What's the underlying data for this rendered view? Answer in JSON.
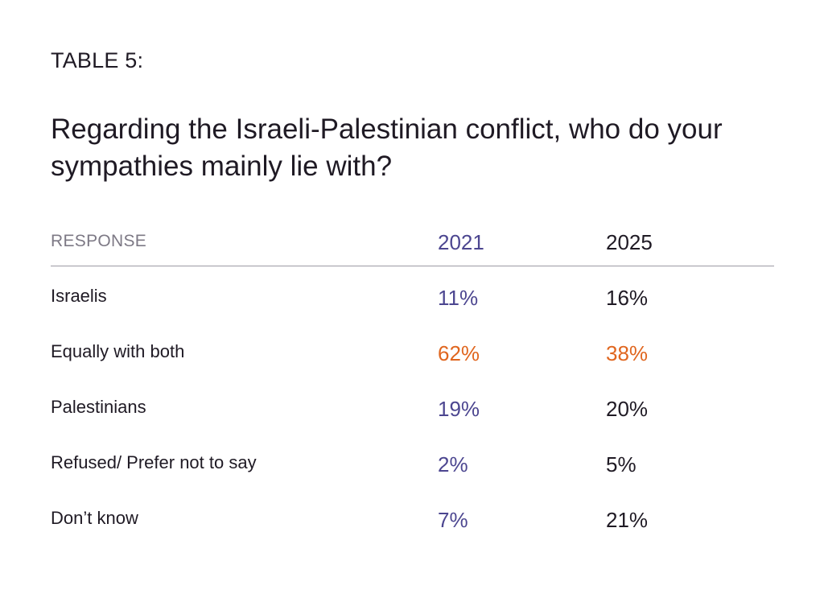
{
  "table_label": "TABLE 5:",
  "title": "Regarding the Israeli-Palestinian conflict, who do your sympathies mainly lie with?",
  "colors": {
    "text": "#1f1a24",
    "header_muted": "#7d7985",
    "year_2021": "#4c4690",
    "highlight": "#e0661f",
    "rule": "#9c9aa3"
  },
  "chart_data": {
    "type": "table",
    "title": "Regarding the Israeli-Palestinian conflict, who do your sympathies mainly lie with?",
    "columns": [
      "RESPONSE",
      "2021",
      "2025"
    ],
    "rows": [
      {
        "response": "Israelis",
        "y2021": "11%",
        "y2025": "16%",
        "highlight": false
      },
      {
        "response": "Equally with both",
        "y2021": "62%",
        "y2025": "38%",
        "highlight": true
      },
      {
        "response": "Palestinians",
        "y2021": "19%",
        "y2025": "20%",
        "highlight": false
      },
      {
        "response": "Refused/ Prefer not to say",
        "y2021": "2%",
        "y2025": "5%",
        "highlight": false
      },
      {
        "response": "Don’t know",
        "y2021": "7%",
        "y2025": "21%",
        "highlight": false
      }
    ]
  }
}
